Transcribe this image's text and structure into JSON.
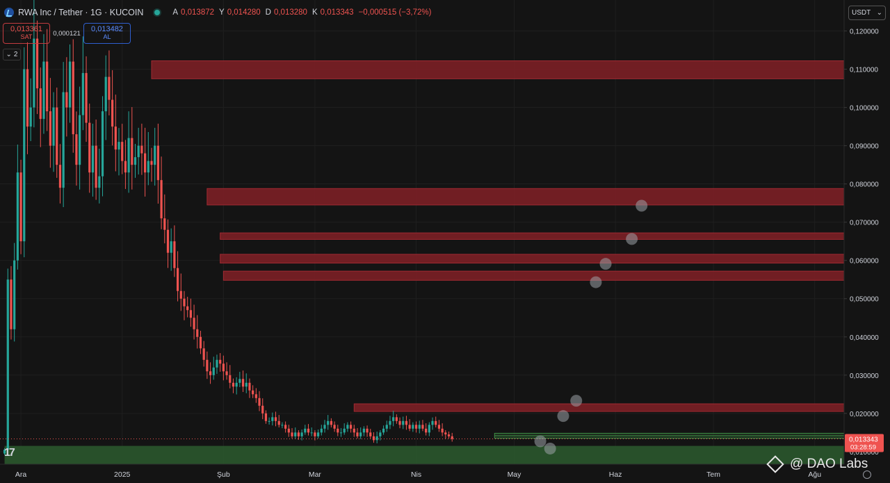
{
  "header": {
    "symbol_title": "RWA Inc / Tether · 1G · KUCOIN",
    "ohlc": [
      {
        "k": "A",
        "v": "0,013872"
      },
      {
        "k": "Y",
        "v": "0,014280"
      },
      {
        "k": "D",
        "v": "0,013280"
      },
      {
        "k": "K",
        "v": "0,013343"
      }
    ],
    "change": "−0,000515 (−3,72%)"
  },
  "trade": {
    "sell_price": "0,013361",
    "sell_label": "SAT",
    "spread": "0,000121",
    "buy_price": "0,013482",
    "buy_label": "AL"
  },
  "layers_count": "2",
  "currency": "USDT",
  "watermark": "@ DAO Labs",
  "colors": {
    "background": "#141414",
    "up": "#26a69a",
    "down": "#ef5350",
    "resistance_zone": "#7b1f25",
    "support_zone": "#2b5a2e"
  },
  "chart_data": {
    "type": "candlestick",
    "y_axis": {
      "min": 0.0067,
      "max": 0.1281,
      "ticks": [
        "0,010000",
        "0,020000",
        "0,030000",
        "0,040000",
        "0,050000",
        "0,060000",
        "0,070000",
        "0,080000",
        "0,090000",
        "0,100000",
        "0,110000",
        "0,120000"
      ],
      "tick_values": [
        0.01,
        0.02,
        0.03,
        0.04,
        0.05,
        0.06,
        0.07,
        0.08,
        0.09,
        0.1,
        0.11,
        0.12
      ]
    },
    "x_axis": {
      "labels": [
        "Ara",
        "2025",
        "Şub",
        "Mar",
        "Nis",
        "May",
        "Haz",
        "Tem",
        "Ağu"
      ],
      "label_days": [
        5,
        36,
        67,
        95,
        126,
        156,
        187,
        217,
        248
      ],
      "day_min": -1.4,
      "day_max": 257
    },
    "last_price": {
      "value": 0.013343,
      "label": "0,013343",
      "countdown": "03:28:59"
    },
    "candles_daily_close": [
      0.0105,
      0.055,
      0.042,
      0.06,
      0.083,
      0.065,
      0.11,
      0.095,
      0.1,
      0.118,
      0.105,
      0.097,
      0.112,
      0.099,
      0.09,
      0.1,
      0.085,
      0.079,
      0.104,
      0.1,
      0.112,
      0.093,
      0.085,
      0.098,
      0.109,
      0.096,
      0.083,
      0.09,
      0.079,
      0.082,
      0.099,
      0.108,
      0.102,
      0.095,
      0.089,
      0.091,
      0.086,
      0.083,
      0.092,
      0.085,
      0.087,
      0.09,
      0.088,
      0.083,
      0.086,
      0.085,
      0.09,
      0.081,
      0.071,
      0.068,
      0.062,
      0.065,
      0.058,
      0.052,
      0.05,
      0.048,
      0.047,
      0.045,
      0.042,
      0.04,
      0.037,
      0.034,
      0.031,
      0.03,
      0.032,
      0.034,
      0.033,
      0.031,
      0.03,
      0.028,
      0.027,
      0.028,
      0.029,
      0.027,
      0.028,
      0.026,
      0.025,
      0.024,
      0.022,
      0.02,
      0.018,
      0.018,
      0.019,
      0.018,
      0.017,
      0.017,
      0.016,
      0.015,
      0.014,
      0.015,
      0.014,
      0.015,
      0.016,
      0.015,
      0.015,
      0.014,
      0.015,
      0.016,
      0.017,
      0.018,
      0.017,
      0.016,
      0.015,
      0.015,
      0.016,
      0.017,
      0.016,
      0.015,
      0.014,
      0.015,
      0.016,
      0.015,
      0.014,
      0.013,
      0.014,
      0.015,
      0.016,
      0.017,
      0.018,
      0.019,
      0.018,
      0.017,
      0.018,
      0.017,
      0.016,
      0.017,
      0.016,
      0.017,
      0.016,
      0.015,
      0.017,
      0.018,
      0.017,
      0.016,
      0.015,
      0.0145,
      0.014,
      0.0133
    ],
    "resistance_zones": [
      [
        0.1075,
        0.1122
      ],
      [
        0.0745,
        0.0788
      ],
      [
        0.0655,
        0.0672
      ],
      [
        0.0593,
        0.0616
      ],
      [
        0.0548,
        0.0572
      ],
      [
        0.0205,
        0.0225
      ]
    ],
    "support_zones": [
      [
        0.0063,
        0.0115
      ],
      [
        0.0135,
        0.0148
      ]
    ],
    "projection_points": [
      {
        "day": 164,
        "value": 0.0127
      },
      {
        "day": 167,
        "value": 0.0108
      },
      {
        "day": 171,
        "value": 0.0193
      },
      {
        "day": 175,
        "value": 0.0233
      },
      {
        "day": 181,
        "value": 0.0543
      },
      {
        "day": 184,
        "value": 0.0591
      },
      {
        "day": 192,
        "value": 0.0656
      },
      {
        "day": 195,
        "value": 0.0743
      }
    ]
  }
}
